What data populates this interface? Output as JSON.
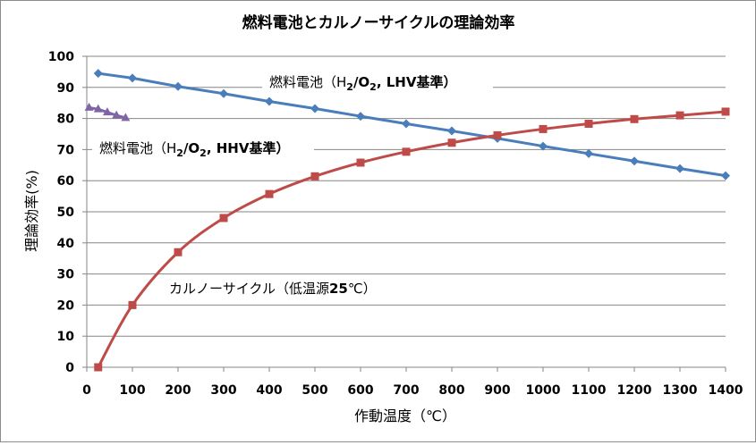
{
  "chart_data": {
    "type": "line",
    "title": "燃料電池とカルノーサイクルの理論効率",
    "xlabel": "作動温度（℃）",
    "ylabel": "理論効率(%)",
    "xlim": [
      0,
      1400
    ],
    "ylim": [
      0,
      100
    ],
    "xticks": [
      "0",
      "100",
      "200",
      "300",
      "400",
      "500",
      "600",
      "700",
      "800",
      "900",
      "1000",
      "1100",
      "1200",
      "1300",
      "1400"
    ],
    "yticks": [
      "0",
      "10",
      "20",
      "30",
      "40",
      "50",
      "60",
      "70",
      "80",
      "90",
      "100"
    ],
    "grid": "horizontal",
    "legend": "none",
    "series": [
      {
        "label_parts": [
          "燃料電池（H",
          "2",
          "/O",
          "2",
          ", LHV基準）"
        ],
        "color": "#4a7ebb",
        "marker": "diamond",
        "x": [
          25,
          100,
          200,
          300,
          400,
          500,
          600,
          700,
          800,
          900,
          1000,
          1100,
          1200,
          1300,
          1400
        ],
        "y": [
          94.5,
          93.0,
          90.3,
          88.0,
          85.5,
          83.2,
          80.7,
          78.3,
          76.0,
          73.6,
          71.1,
          68.7,
          66.3,
          63.9,
          61.6
        ]
      },
      {
        "label_parts": [
          "燃料電池（H",
          "2",
          "/O",
          "2",
          ", HHV基準）"
        ],
        "color": "#7f65a6",
        "marker": "triangle",
        "x": [
          5,
          25,
          45,
          65,
          85
        ],
        "y": [
          83.5,
          83.0,
          82.0,
          81.0,
          80.2
        ]
      },
      {
        "label_parts": [
          "カルノーサイクル（低温源",
          "25",
          "℃）"
        ],
        "color": "#be4b48",
        "marker": "square",
        "x": [
          25,
          100,
          200,
          300,
          400,
          500,
          600,
          700,
          800,
          900,
          1000,
          1100,
          1200,
          1300,
          1400
        ],
        "y": [
          0,
          20.0,
          37.0,
          48.0,
          55.7,
          61.4,
          65.8,
          69.3,
          72.2,
          74.6,
          76.6,
          78.3,
          79.8,
          81.0,
          82.2
        ],
        "curve": "smooth"
      }
    ]
  }
}
